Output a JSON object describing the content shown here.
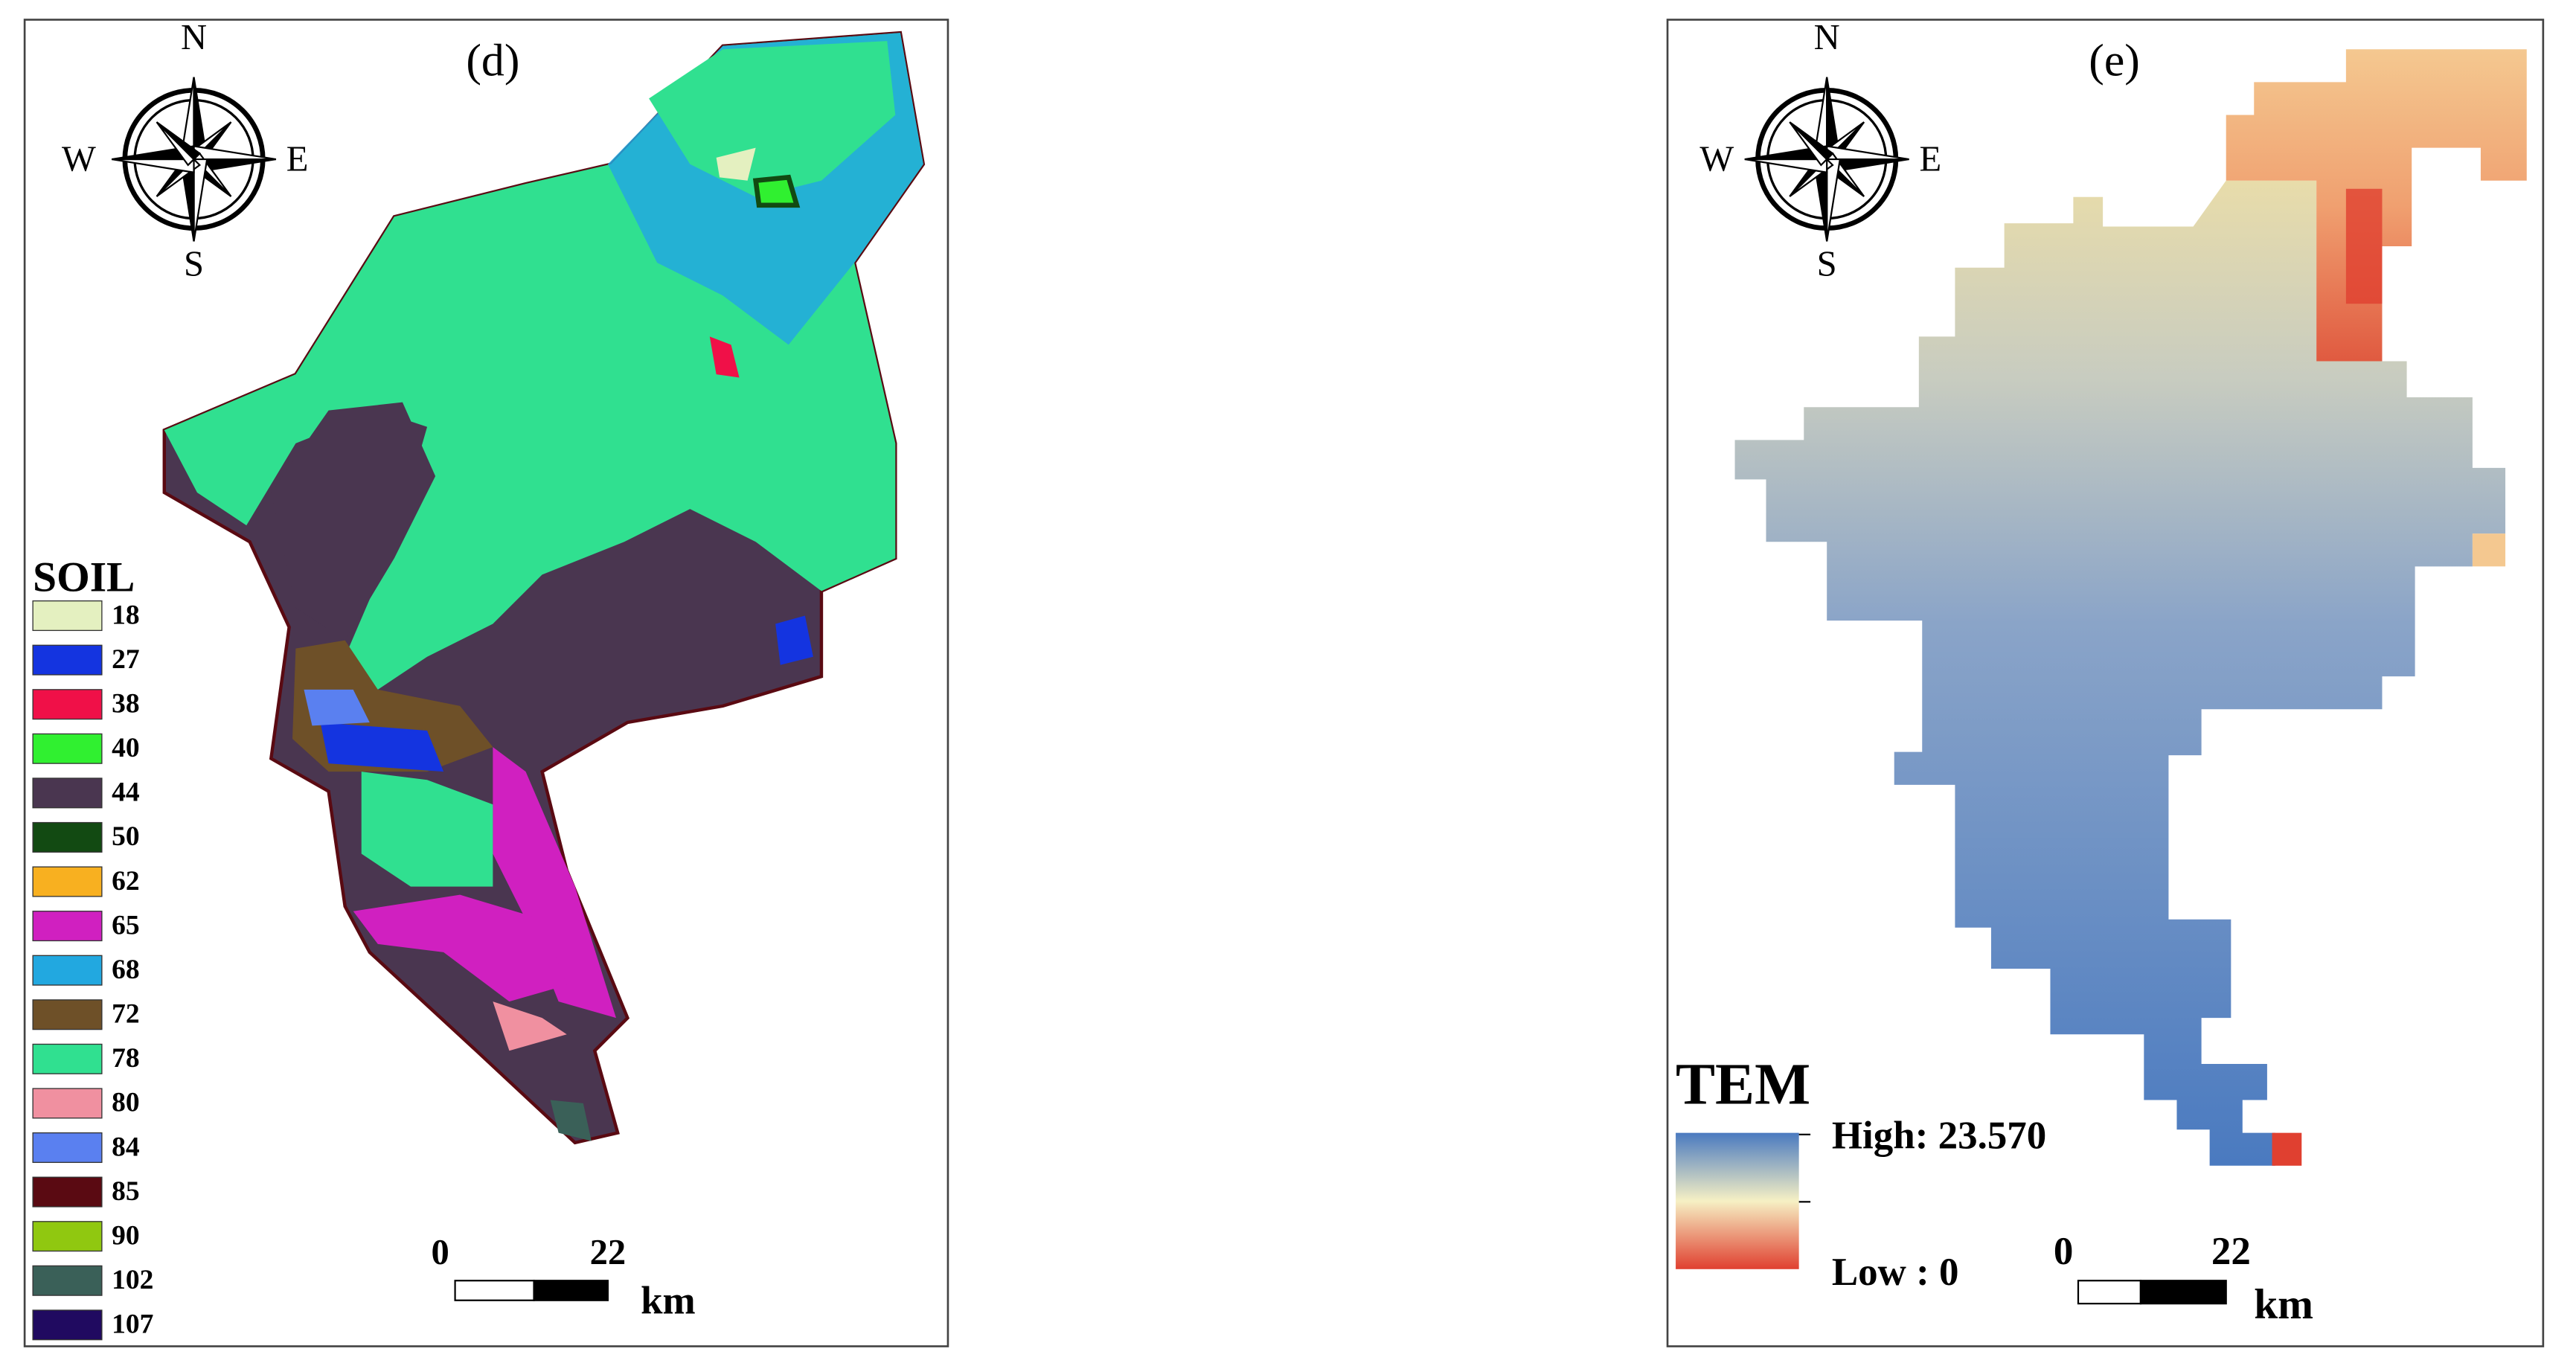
{
  "panels": [
    {
      "label": "(d)",
      "compass": {
        "n": "N",
        "s": "S",
        "e": "E",
        "w": "W"
      },
      "legend": {
        "title": "SOIL",
        "items": [
          {
            "label": "18",
            "color": "#e4f0c0"
          },
          {
            "label": "27",
            "color": "#1434e0"
          },
          {
            "label": "38",
            "color": "#f01048"
          },
          {
            "label": "40",
            "color": "#30f030"
          },
          {
            "label": "44",
            "color": "#4a3650"
          },
          {
            "label": "50",
            "color": "#124a12"
          },
          {
            "label": "62",
            "color": "#f8b020"
          },
          {
            "label": "65",
            "color": "#d020c0"
          },
          {
            "label": "68",
            "color": "#22a8e0"
          },
          {
            "label": "72",
            "color": "#6e5028"
          },
          {
            "label": "78",
            "color": "#30e090"
          },
          {
            "label": "80",
            "color": "#f090a0"
          },
          {
            "label": "84",
            "color": "#5a80f0"
          },
          {
            "label": "85",
            "color": "#5a0a12"
          },
          {
            "label": "90",
            "color": "#90c810"
          },
          {
            "label": "102",
            "color": "#3a6058"
          },
          {
            "label": "107",
            "color": "#200a60"
          }
        ]
      },
      "scale": {
        "start": "0",
        "end": "22",
        "unit": "km"
      }
    },
    {
      "label": "(e)",
      "compass": {
        "n": "N",
        "s": "S",
        "e": "E",
        "w": "W"
      },
      "legend": {
        "title": "TEM",
        "high": "High: 23.570",
        "low": "Low : 0"
      },
      "scale": {
        "start": "0",
        "end": "22",
        "unit": "km"
      }
    }
  ]
}
